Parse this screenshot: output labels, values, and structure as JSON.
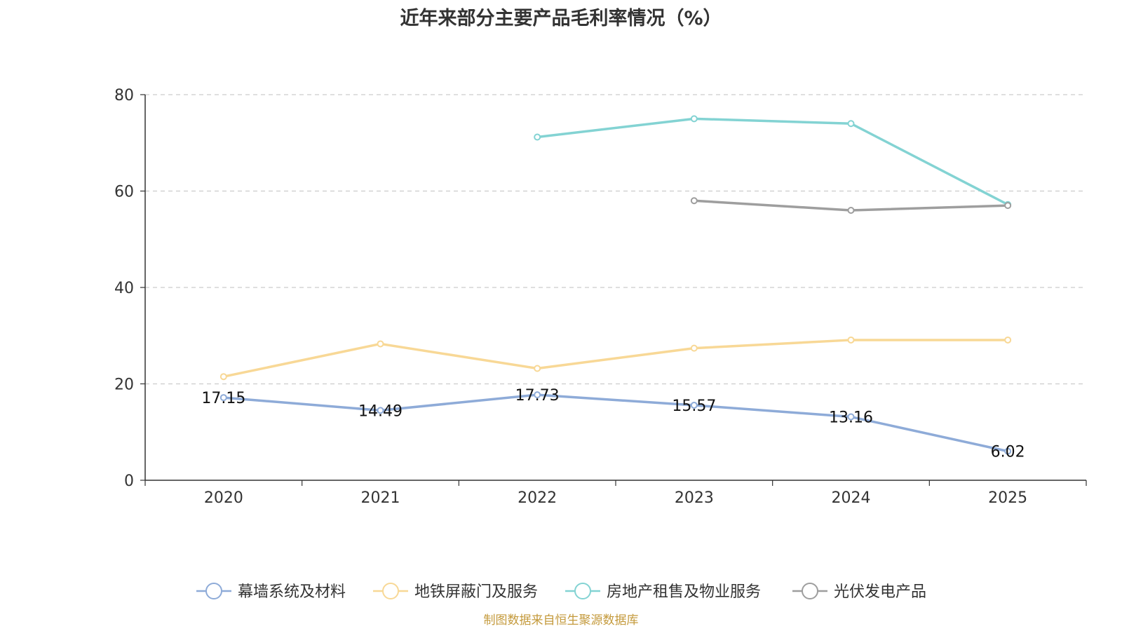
{
  "title": "近年来部分主要产品毛利率情况（%）",
  "source": "制图数据来自恒生聚源数据库",
  "chart_data": {
    "type": "line",
    "title": "近年来部分主要产品毛利率情况（%）",
    "xlabel": "",
    "ylabel": "",
    "categories": [
      "2020",
      "2021",
      "2022",
      "2023",
      "2024",
      "2025"
    ],
    "ylim": [
      0,
      80
    ],
    "yticks": [
      0,
      20,
      40,
      60,
      80
    ],
    "grid": true,
    "legend_position": "bottom",
    "series": [
      {
        "name": "幕墙系统及材料",
        "color": "#8eabd8",
        "values": [
          17.15,
          14.49,
          17.73,
          15.57,
          13.16,
          6.02
        ],
        "labels": [
          "17.15",
          "14.49",
          "17.73",
          "15.57",
          "13.16",
          "6.02"
        ]
      },
      {
        "name": "地铁屏蔽门及服务",
        "color": "#f8d896",
        "values": [
          21.5,
          28.3,
          23.2,
          27.4,
          29.1,
          29.1
        ],
        "labels": []
      },
      {
        "name": "房地产租售及物业服务",
        "color": "#83d3d3",
        "values": [
          null,
          null,
          71.2,
          75.0,
          74.0,
          57.2
        ],
        "labels": []
      },
      {
        "name": "光伏发电产品",
        "color": "#9e9e9e",
        "values": [
          null,
          null,
          null,
          58.0,
          56.0,
          57.0
        ],
        "labels": []
      }
    ]
  }
}
